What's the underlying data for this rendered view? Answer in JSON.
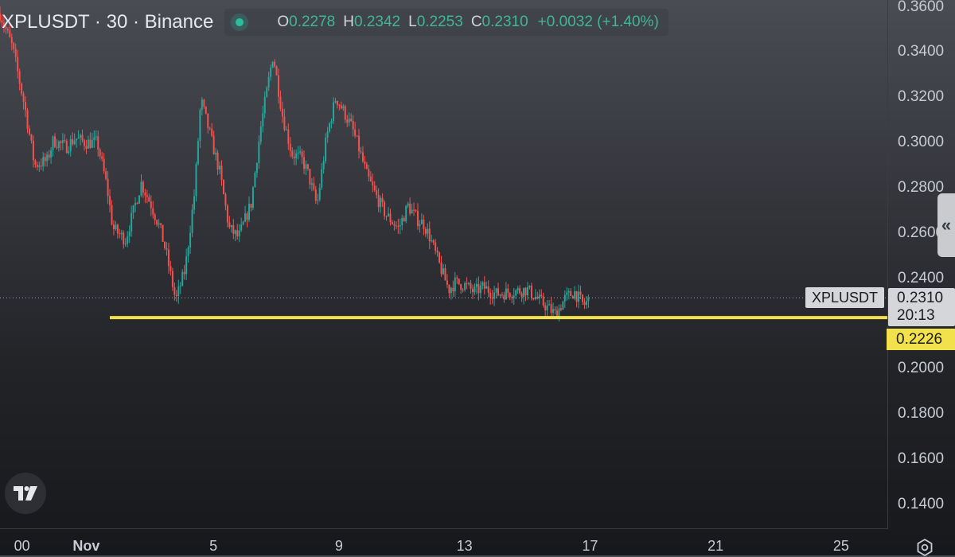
{
  "header": {
    "symbol_title": "XPLUSDT · 30 · Binance",
    "open_label": "O",
    "open_value": "0.2278",
    "high_label": "H",
    "high_value": "0.2342",
    "low_label": "L",
    "low_value": "0.2253",
    "close_label": "C",
    "close_value": "0.2310",
    "change_text": "+0.0032 (+1.40%)"
  },
  "price_axis": {
    "symbol_tag": "XPLUSDT",
    "current_price": "0.2310",
    "countdown": "20:13",
    "level_price": "0.2226"
  },
  "colors": {
    "up": "#26a69a",
    "down": "#ef5350",
    "level_line": "#f2e14a",
    "accent_green": "#3fb59c"
  },
  "chart_data": {
    "type": "candlestick",
    "title": "XPLUSDT · 30 · Binance",
    "interval": "30",
    "exchange": "Binance",
    "ylim": [
      0.1294,
      0.363
    ],
    "y_ticks": [
      "0.3600",
      "0.3400",
      "0.3200",
      "0.3000",
      "0.2800",
      "0.2600",
      "0.2400",
      "0.2000",
      "0.1800",
      "0.1600",
      "0.1400"
    ],
    "x_ticks": [
      "00",
      "Nov",
      "5",
      "9",
      "13",
      "17",
      "21",
      "25"
    ],
    "x_tick_days": [
      -1.1,
      0.95,
      5,
      9,
      13,
      17,
      21,
      25
    ],
    "x_range_days": [
      -1.8,
      26.5
    ],
    "series": [
      {
        "name": "XPLUSDT price path",
        "x_days": [
          -1.8,
          -1.4,
          -1.0,
          -0.7,
          -0.3,
          -0.1,
          0.3,
          0.6,
          0.9,
          1.3,
          1.6,
          1.8,
          2.2,
          2.5,
          2.7,
          3.0,
          3.3,
          3.5,
          3.8,
          4.1,
          4.4,
          4.6,
          4.9,
          5.2,
          5.5,
          5.8,
          6.2,
          6.5,
          6.9,
          7.2,
          7.5,
          7.8,
          8.0,
          8.3,
          8.6,
          8.9,
          9.1,
          9.4,
          9.6,
          9.9,
          10.2,
          10.5,
          10.9,
          11.2,
          11.5,
          11.7,
          11.9,
          12.2,
          12.5,
          12.7,
          13.0,
          13.3,
          13.6,
          14.0,
          14.5,
          15.0,
          15.4,
          15.9,
          16.2,
          16.5,
          16.8,
          17.0
        ],
        "close": [
          0.357,
          0.342,
          0.315,
          0.29,
          0.292,
          0.301,
          0.298,
          0.302,
          0.3,
          0.3,
          0.281,
          0.262,
          0.257,
          0.272,
          0.282,
          0.273,
          0.262,
          0.251,
          0.23,
          0.244,
          0.278,
          0.319,
          0.303,
          0.287,
          0.262,
          0.258,
          0.273,
          0.306,
          0.339,
          0.312,
          0.295,
          0.293,
          0.287,
          0.272,
          0.302,
          0.32,
          0.315,
          0.307,
          0.299,
          0.285,
          0.276,
          0.268,
          0.262,
          0.272,
          0.266,
          0.264,
          0.258,
          0.246,
          0.235,
          0.238,
          0.237,
          0.234,
          0.236,
          0.233,
          0.234,
          0.235,
          0.23,
          0.224,
          0.231,
          0.234,
          0.228,
          0.231
        ]
      },
      {
        "name": "Horizontal level",
        "x_days": [
          1.7,
          26.5
        ],
        "y": 0.2226
      }
    ],
    "last_price": 0.231,
    "level_price": 0.2226
  }
}
